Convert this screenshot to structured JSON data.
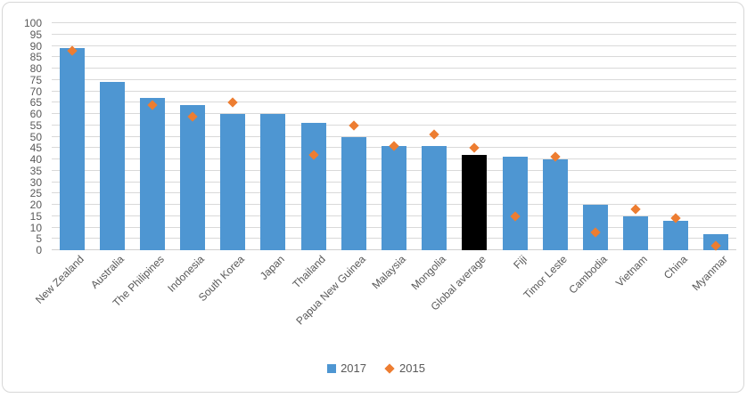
{
  "chart_data": {
    "type": "bar",
    "title": "",
    "xlabel": "",
    "ylabel": "",
    "ylim": [
      0,
      100
    ],
    "ytick_step": 5,
    "yticks": [
      0,
      5,
      10,
      15,
      20,
      25,
      30,
      35,
      40,
      45,
      50,
      55,
      60,
      65,
      70,
      75,
      80,
      85,
      90,
      95,
      100
    ],
    "grid": "horizontal",
    "legend_position": "bottom",
    "categories": [
      "New Zealand",
      "Australia",
      "The Philipines",
      "Indonesia",
      "South Korea",
      "Japan",
      "Thailand",
      "Papua New Guinea",
      "Malaysia",
      "Mongolia",
      "Global average",
      "Fiji",
      "Timor Leste",
      "Cambodia",
      "Vietnam",
      "China",
      "Myanmar"
    ],
    "series": [
      {
        "name": "2017",
        "display": "bar",
        "marker": "square",
        "color": "#4e96d2",
        "values": [
          89,
          74,
          67,
          64,
          60,
          60,
          56,
          50,
          46,
          46,
          42,
          41,
          40,
          20,
          15,
          13,
          7
        ]
      },
      {
        "name": "2015",
        "display": "scatter",
        "marker": "diamond",
        "color": "#ed7d31",
        "values": [
          88,
          null,
          64,
          59,
          65,
          null,
          42,
          55,
          46,
          51,
          45,
          15,
          41,
          8,
          18,
          14,
          2
        ]
      }
    ],
    "highlight": {
      "category": "Global average",
      "bar_color": "#000000"
    }
  },
  "legend": {
    "items": [
      {
        "label": "2017",
        "marker": "square",
        "color": "#4e96d2"
      },
      {
        "label": "2015",
        "marker": "diamond",
        "color": "#ed7d31"
      }
    ]
  },
  "colors": {
    "bar_blue": "#4e96d2",
    "marker_orange": "#ed7d31",
    "highlight_black": "#000000",
    "gridline": "#d9d9d9",
    "axis_text": "#595959"
  }
}
